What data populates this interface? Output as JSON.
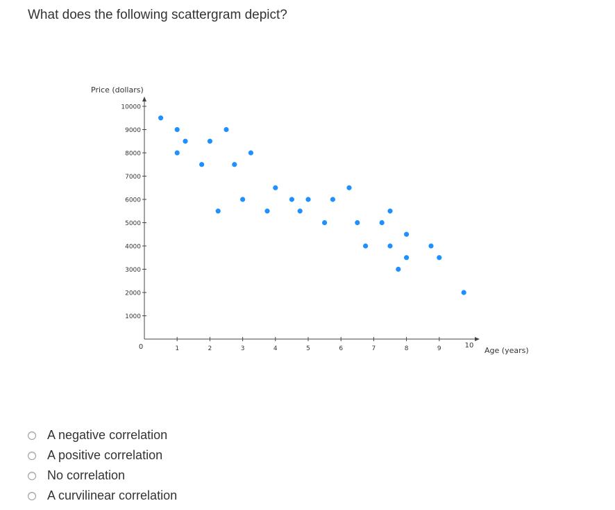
{
  "question": "What does the following scattergram depict?",
  "chart_data": {
    "type": "scatter",
    "title": "",
    "xlabel": "Age (years)",
    "ylabel": "Price (dollars)",
    "xlim": [
      0,
      10
    ],
    "ylim": [
      0,
      10000
    ],
    "x_ticks": [
      "1",
      "2",
      "3",
      "4",
      "5",
      "6",
      "7",
      "8",
      "9",
      "10"
    ],
    "y_ticks": [
      "10000",
      "9000",
      "8000",
      "7000",
      "6000",
      "5000",
      "4000",
      "3000",
      "2000",
      "1000"
    ],
    "origin_label": "0",
    "point_color": "#1e90ff",
    "points": [
      {
        "x": 0.5,
        "y": 9500
      },
      {
        "x": 1.0,
        "y": 9000
      },
      {
        "x": 1.0,
        "y": 8000
      },
      {
        "x": 1.25,
        "y": 8500
      },
      {
        "x": 1.75,
        "y": 7500
      },
      {
        "x": 2.0,
        "y": 8500
      },
      {
        "x": 2.25,
        "y": 5500
      },
      {
        "x": 2.5,
        "y": 9000
      },
      {
        "x": 2.75,
        "y": 7500
      },
      {
        "x": 3.0,
        "y": 6000
      },
      {
        "x": 3.25,
        "y": 8000
      },
      {
        "x": 3.75,
        "y": 5500
      },
      {
        "x": 4.0,
        "y": 6500
      },
      {
        "x": 4.5,
        "y": 6000
      },
      {
        "x": 4.75,
        "y": 5500
      },
      {
        "x": 5.0,
        "y": 6000
      },
      {
        "x": 5.5,
        "y": 5000
      },
      {
        "x": 5.75,
        "y": 6000
      },
      {
        "x": 6.25,
        "y": 6500
      },
      {
        "x": 6.5,
        "y": 5000
      },
      {
        "x": 6.75,
        "y": 4000
      },
      {
        "x": 7.25,
        "y": 5000
      },
      {
        "x": 7.5,
        "y": 5500
      },
      {
        "x": 7.5,
        "y": 4000
      },
      {
        "x": 7.75,
        "y": 3000
      },
      {
        "x": 8.0,
        "y": 4500
      },
      {
        "x": 8.0,
        "y": 3500
      },
      {
        "x": 8.75,
        "y": 4000
      },
      {
        "x": 9.0,
        "y": 3500
      },
      {
        "x": 9.75,
        "y": 2000
      }
    ]
  },
  "options": [
    {
      "label": "A negative correlation"
    },
    {
      "label": "A positive correlation"
    },
    {
      "label": "No correlation"
    },
    {
      "label": "A curvilinear correlation"
    }
  ]
}
